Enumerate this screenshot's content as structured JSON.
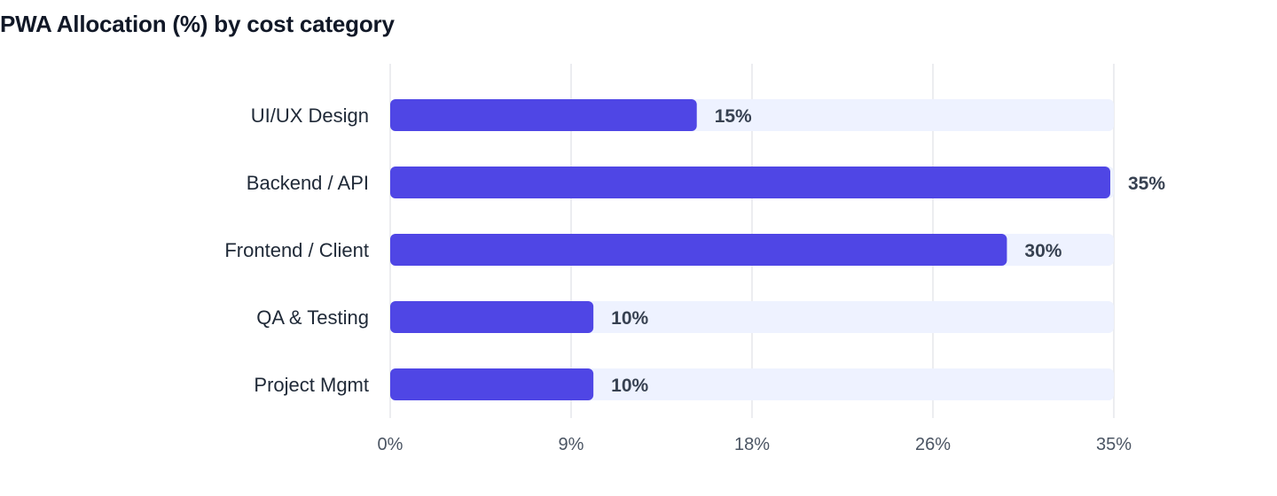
{
  "chart_data": {
    "type": "bar",
    "orientation": "horizontal",
    "title": "PWA Allocation (%) by cost category",
    "xlabel": "",
    "ylabel": "",
    "categories": [
      "UI/UX Design",
      "Backend / API",
      "Frontend / Client",
      "QA & Testing",
      "Project Mgmt"
    ],
    "values": [
      15,
      35,
      30,
      10,
      10
    ],
    "value_labels": [
      "15%",
      "35%",
      "30%",
      "10%",
      "10%"
    ],
    "xlim": [
      0,
      35
    ],
    "ticks": [
      0,
      8.75,
      17.5,
      26.25,
      35
    ],
    "tick_labels": [
      "0%",
      "9%",
      "18%",
      "26%",
      "35%"
    ],
    "grid": true,
    "legend": "none",
    "colors": {
      "bar": "#4f46e5",
      "track": "#eef2ff",
      "grid": "#e5e7eb"
    }
  }
}
